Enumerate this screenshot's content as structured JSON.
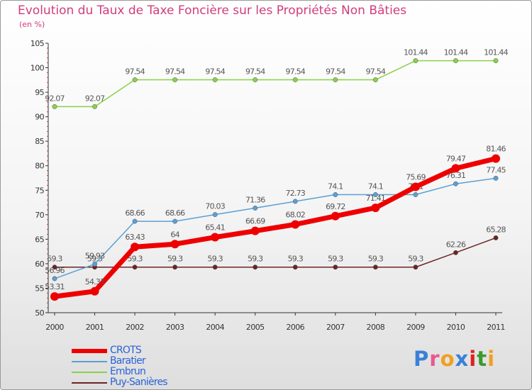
{
  "chart_data": {
    "type": "line",
    "title": "Evolution du Taux de Taxe Foncière sur les Propriétés Non Bâties",
    "ylabel": "(en %)",
    "xlabel": "",
    "ylim": [
      50,
      105
    ],
    "yticks": [
      50,
      55,
      60,
      65,
      70,
      75,
      80,
      85,
      90,
      95,
      100,
      105
    ],
    "categories": [
      "2000",
      "2001",
      "2002",
      "2003",
      "2004",
      "2005",
      "2006",
      "2007",
      "2008",
      "2009",
      "2010",
      "2011"
    ],
    "series": [
      {
        "name": "Puy-Sanières",
        "color": "#6b2424",
        "values": [
          59.3,
          59.3,
          59.3,
          59.3,
          59.3,
          59.3,
          59.3,
          59.3,
          59.3,
          59.3,
          62.26,
          65.28
        ],
        "labels": [
          "59.3",
          "59.3",
          "59.3",
          "59.3",
          "59.3",
          "59.3",
          "59.3",
          "59.3",
          "59.3",
          "59.3",
          "62.26",
          "65.28"
        ]
      },
      {
        "name": "Embrun",
        "color": "#8bd148",
        "values": [
          92.07,
          92.07,
          97.54,
          97.54,
          97.54,
          97.54,
          97.54,
          97.54,
          97.54,
          101.44,
          101.44,
          101.44
        ],
        "labels": [
          "92.07",
          "92.07",
          "97.54",
          "97.54",
          "97.54",
          "97.54",
          "97.54",
          "97.54",
          "97.54",
          "101.44",
          "101.44",
          "101.44"
        ]
      },
      {
        "name": "Baratier",
        "color": "#5b9fd4",
        "values": [
          56.96,
          59.93,
          68.66,
          68.66,
          70.03,
          71.36,
          72.73,
          74.1,
          74.1,
          74.1,
          76.31,
          77.45
        ],
        "labels": [
          "56.96",
          "59.93",
          "68.66",
          "68.66",
          "70.03",
          "71.36",
          "72.73",
          "74.1",
          "74.1",
          "74.1",
          "76.31",
          "77.45"
        ]
      },
      {
        "name": "CROTS",
        "color": "#ee0000",
        "values": [
          53.31,
          54.37,
          63.43,
          64,
          65.41,
          66.69,
          68.02,
          69.72,
          71.41,
          75.69,
          79.47,
          81.46
        ],
        "labels": [
          "53.31",
          "54.37",
          "63.43",
          "64",
          "65.41",
          "66.69",
          "68.02",
          "69.72",
          "71.41",
          "75.69",
          "79.47",
          "81.46"
        ]
      }
    ],
    "legend": [
      "CROTS",
      "Baratier",
      "Embrun",
      "Puy-Sanières"
    ],
    "legend_position": "bottom-left",
    "grid": false
  },
  "branding": {
    "logo_text": "Proxiti",
    "letter_colors": [
      "#3a80d8",
      "#e85a8c",
      "#f0a020",
      "#3a80d8",
      "#e02020",
      "#3a9a30",
      "#f0a020"
    ]
  }
}
